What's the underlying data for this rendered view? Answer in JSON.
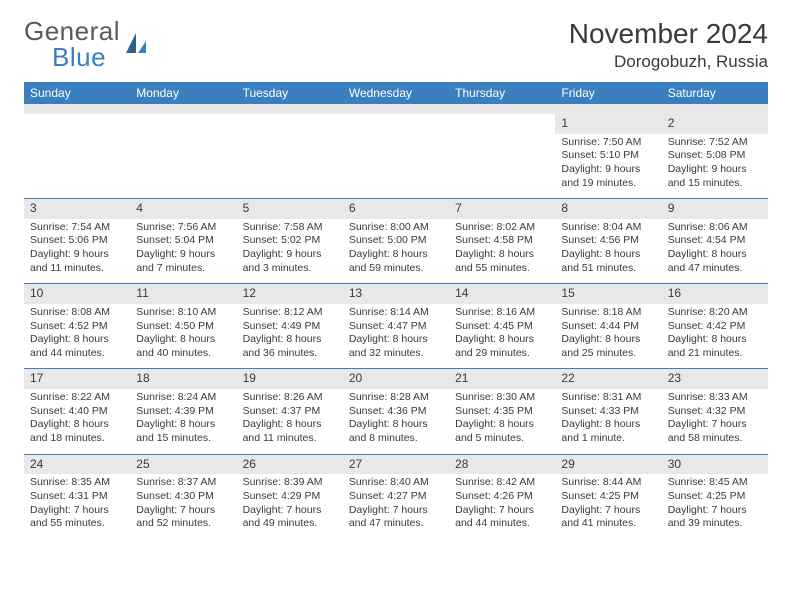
{
  "logo": {
    "text1": "General",
    "text2": "Blue"
  },
  "title": "November 2024",
  "location": "Dorogobuzh, Russia",
  "colors": {
    "header_bg": "#3a7fbf",
    "header_text": "#ffffff",
    "daynum_bg": "#e8e8e8",
    "divider": "#3a7fbf",
    "body_text": "#3a3a3a",
    "logo_gray": "#5a5a5a",
    "logo_blue": "#3a7fbf",
    "page_bg": "#ffffff"
  },
  "weekdays": [
    "Sunday",
    "Monday",
    "Tuesday",
    "Wednesday",
    "Thursday",
    "Friday",
    "Saturday"
  ],
  "weeks": [
    [
      {
        "n": "",
        "sr": "",
        "ss": "",
        "dl": ""
      },
      {
        "n": "",
        "sr": "",
        "ss": "",
        "dl": ""
      },
      {
        "n": "",
        "sr": "",
        "ss": "",
        "dl": ""
      },
      {
        "n": "",
        "sr": "",
        "ss": "",
        "dl": ""
      },
      {
        "n": "",
        "sr": "",
        "ss": "",
        "dl": ""
      },
      {
        "n": "1",
        "sr": "Sunrise: 7:50 AM",
        "ss": "Sunset: 5:10 PM",
        "dl": "Daylight: 9 hours and 19 minutes."
      },
      {
        "n": "2",
        "sr": "Sunrise: 7:52 AM",
        "ss": "Sunset: 5:08 PM",
        "dl": "Daylight: 9 hours and 15 minutes."
      }
    ],
    [
      {
        "n": "3",
        "sr": "Sunrise: 7:54 AM",
        "ss": "Sunset: 5:06 PM",
        "dl": "Daylight: 9 hours and 11 minutes."
      },
      {
        "n": "4",
        "sr": "Sunrise: 7:56 AM",
        "ss": "Sunset: 5:04 PM",
        "dl": "Daylight: 9 hours and 7 minutes."
      },
      {
        "n": "5",
        "sr": "Sunrise: 7:58 AM",
        "ss": "Sunset: 5:02 PM",
        "dl": "Daylight: 9 hours and 3 minutes."
      },
      {
        "n": "6",
        "sr": "Sunrise: 8:00 AM",
        "ss": "Sunset: 5:00 PM",
        "dl": "Daylight: 8 hours and 59 minutes."
      },
      {
        "n": "7",
        "sr": "Sunrise: 8:02 AM",
        "ss": "Sunset: 4:58 PM",
        "dl": "Daylight: 8 hours and 55 minutes."
      },
      {
        "n": "8",
        "sr": "Sunrise: 8:04 AM",
        "ss": "Sunset: 4:56 PM",
        "dl": "Daylight: 8 hours and 51 minutes."
      },
      {
        "n": "9",
        "sr": "Sunrise: 8:06 AM",
        "ss": "Sunset: 4:54 PM",
        "dl": "Daylight: 8 hours and 47 minutes."
      }
    ],
    [
      {
        "n": "10",
        "sr": "Sunrise: 8:08 AM",
        "ss": "Sunset: 4:52 PM",
        "dl": "Daylight: 8 hours and 44 minutes."
      },
      {
        "n": "11",
        "sr": "Sunrise: 8:10 AM",
        "ss": "Sunset: 4:50 PM",
        "dl": "Daylight: 8 hours and 40 minutes."
      },
      {
        "n": "12",
        "sr": "Sunrise: 8:12 AM",
        "ss": "Sunset: 4:49 PM",
        "dl": "Daylight: 8 hours and 36 minutes."
      },
      {
        "n": "13",
        "sr": "Sunrise: 8:14 AM",
        "ss": "Sunset: 4:47 PM",
        "dl": "Daylight: 8 hours and 32 minutes."
      },
      {
        "n": "14",
        "sr": "Sunrise: 8:16 AM",
        "ss": "Sunset: 4:45 PM",
        "dl": "Daylight: 8 hours and 29 minutes."
      },
      {
        "n": "15",
        "sr": "Sunrise: 8:18 AM",
        "ss": "Sunset: 4:44 PM",
        "dl": "Daylight: 8 hours and 25 minutes."
      },
      {
        "n": "16",
        "sr": "Sunrise: 8:20 AM",
        "ss": "Sunset: 4:42 PM",
        "dl": "Daylight: 8 hours and 21 minutes."
      }
    ],
    [
      {
        "n": "17",
        "sr": "Sunrise: 8:22 AM",
        "ss": "Sunset: 4:40 PM",
        "dl": "Daylight: 8 hours and 18 minutes."
      },
      {
        "n": "18",
        "sr": "Sunrise: 8:24 AM",
        "ss": "Sunset: 4:39 PM",
        "dl": "Daylight: 8 hours and 15 minutes."
      },
      {
        "n": "19",
        "sr": "Sunrise: 8:26 AM",
        "ss": "Sunset: 4:37 PM",
        "dl": "Daylight: 8 hours and 11 minutes."
      },
      {
        "n": "20",
        "sr": "Sunrise: 8:28 AM",
        "ss": "Sunset: 4:36 PM",
        "dl": "Daylight: 8 hours and 8 minutes."
      },
      {
        "n": "21",
        "sr": "Sunrise: 8:30 AM",
        "ss": "Sunset: 4:35 PM",
        "dl": "Daylight: 8 hours and 5 minutes."
      },
      {
        "n": "22",
        "sr": "Sunrise: 8:31 AM",
        "ss": "Sunset: 4:33 PM",
        "dl": "Daylight: 8 hours and 1 minute."
      },
      {
        "n": "23",
        "sr": "Sunrise: 8:33 AM",
        "ss": "Sunset: 4:32 PM",
        "dl": "Daylight: 7 hours and 58 minutes."
      }
    ],
    [
      {
        "n": "24",
        "sr": "Sunrise: 8:35 AM",
        "ss": "Sunset: 4:31 PM",
        "dl": "Daylight: 7 hours and 55 minutes."
      },
      {
        "n": "25",
        "sr": "Sunrise: 8:37 AM",
        "ss": "Sunset: 4:30 PM",
        "dl": "Daylight: 7 hours and 52 minutes."
      },
      {
        "n": "26",
        "sr": "Sunrise: 8:39 AM",
        "ss": "Sunset: 4:29 PM",
        "dl": "Daylight: 7 hours and 49 minutes."
      },
      {
        "n": "27",
        "sr": "Sunrise: 8:40 AM",
        "ss": "Sunset: 4:27 PM",
        "dl": "Daylight: 7 hours and 47 minutes."
      },
      {
        "n": "28",
        "sr": "Sunrise: 8:42 AM",
        "ss": "Sunset: 4:26 PM",
        "dl": "Daylight: 7 hours and 44 minutes."
      },
      {
        "n": "29",
        "sr": "Sunrise: 8:44 AM",
        "ss": "Sunset: 4:25 PM",
        "dl": "Daylight: 7 hours and 41 minutes."
      },
      {
        "n": "30",
        "sr": "Sunrise: 8:45 AM",
        "ss": "Sunset: 4:25 PM",
        "dl": "Daylight: 7 hours and 39 minutes."
      }
    ]
  ]
}
